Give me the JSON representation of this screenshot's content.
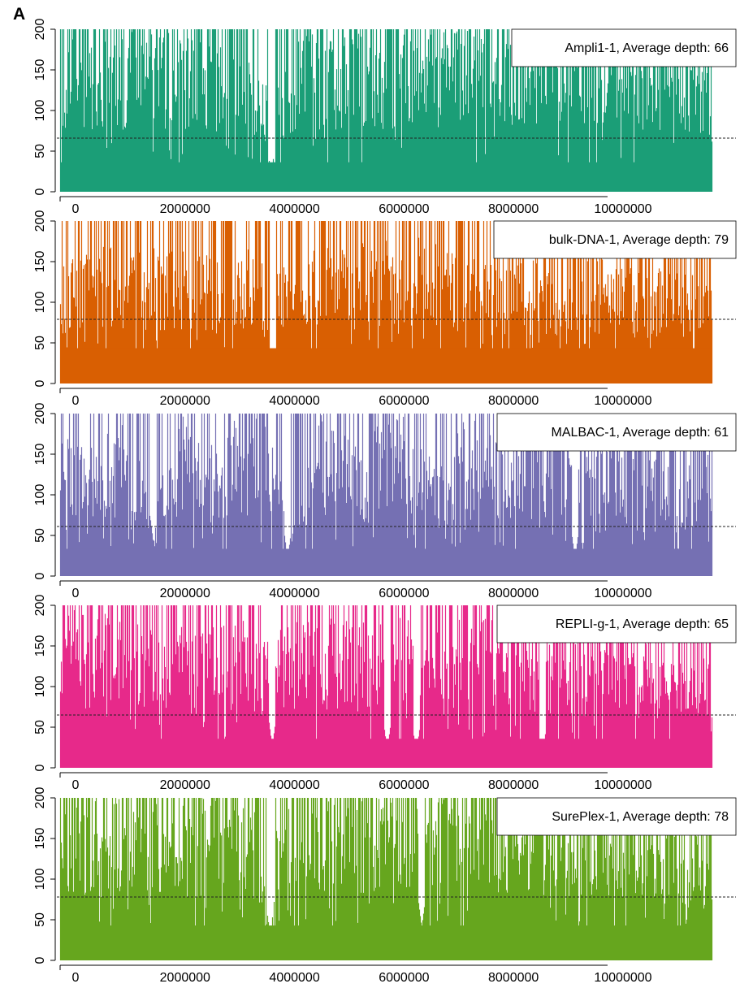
{
  "figure": {
    "panel_label": "A"
  },
  "chart_data": [
    {
      "type": "area",
      "series_name": "Ampli1-1",
      "legend": "Ampli1-1, Average depth: 66",
      "average_depth": 66,
      "color": "#1b9e77",
      "xlim": [
        0,
        11900000
      ],
      "ylim": [
        0,
        200
      ],
      "x_ticks": [
        0,
        2000000,
        4000000,
        6000000,
        8000000,
        10000000
      ],
      "y_ticks": [
        0,
        50,
        100,
        150,
        200
      ],
      "legend_position": "top-right",
      "profile": [
        [
          0,
          120
        ],
        [
          400000,
          140
        ],
        [
          800000,
          130
        ],
        [
          1500000,
          140
        ],
        [
          2500000,
          135
        ],
        [
          3300000,
          130
        ],
        [
          3750000,
          100
        ],
        [
          3820000,
          35
        ],
        [
          3900000,
          110
        ],
        [
          4500000,
          140
        ],
        [
          5500000,
          135
        ],
        [
          6500000,
          145
        ],
        [
          7500000,
          140
        ],
        [
          8500000,
          135
        ],
        [
          9500000,
          140
        ],
        [
          10500000,
          135
        ],
        [
          11500000,
          130
        ],
        [
          11900000,
          110
        ]
      ],
      "dips": [
        [
          3850000,
          20
        ]
      ]
    },
    {
      "type": "area",
      "series_name": "bulk-DNA-1",
      "legend": "bulk-DNA-1, Average depth: 79",
      "average_depth": 79,
      "color": "#d95f02",
      "xlim": [
        0,
        11900000
      ],
      "ylim": [
        0,
        200
      ],
      "x_ticks": [
        0,
        2000000,
        4000000,
        6000000,
        8000000,
        10000000
      ],
      "y_ticks": [
        0,
        50,
        100,
        150,
        200
      ],
      "legend_position": "top-right",
      "profile": [
        [
          0,
          100
        ],
        [
          500000,
          115
        ],
        [
          1500000,
          120
        ],
        [
          2500000,
          110
        ],
        [
          3500000,
          115
        ],
        [
          3780000,
          100
        ],
        [
          3850000,
          30
        ],
        [
          3950000,
          105
        ],
        [
          4500000,
          115
        ],
        [
          5500000,
          120
        ],
        [
          6500000,
          125
        ],
        [
          7500000,
          110
        ],
        [
          8500000,
          105
        ],
        [
          9500000,
          110
        ],
        [
          10500000,
          100
        ],
        [
          11500000,
          95
        ],
        [
          11900000,
          90
        ]
      ],
      "dips": [
        [
          3880000,
          15
        ]
      ]
    },
    {
      "type": "area",
      "series_name": "MALBAC-1",
      "legend": "MALBAC-1, Average depth: 61",
      "average_depth": 61,
      "color": "#7570b3",
      "xlim": [
        0,
        11900000
      ],
      "ylim": [
        0,
        200
      ],
      "x_ticks": [
        0,
        2000000,
        4000000,
        6000000,
        8000000,
        10000000
      ],
      "y_ticks": [
        0,
        50,
        100,
        150,
        200
      ],
      "legend_position": "top-right",
      "profile": [
        [
          0,
          120
        ],
        [
          600000,
          110
        ],
        [
          1200000,
          140
        ],
        [
          1700000,
          60
        ],
        [
          2300000,
          150
        ],
        [
          2900000,
          100
        ],
        [
          3300000,
          160
        ],
        [
          3800000,
          130
        ],
        [
          4200000,
          50
        ],
        [
          4700000,
          140
        ],
        [
          5500000,
          110
        ],
        [
          6100000,
          150
        ],
        [
          6800000,
          100
        ],
        [
          7500000,
          140
        ],
        [
          8300000,
          120
        ],
        [
          9000000,
          130
        ],
        [
          9800000,
          110
        ],
        [
          10600000,
          140
        ],
        [
          11300000,
          80
        ],
        [
          11800000,
          120
        ]
      ],
      "dips": [
        [
          1700000,
          40
        ],
        [
          4150000,
          20
        ],
        [
          9400000,
          20
        ]
      ]
    },
    {
      "type": "area",
      "series_name": "REPLI-g-1",
      "legend": "REPLI-g-1, Average depth: 65",
      "average_depth": 65,
      "color": "#e7298a",
      "xlim": [
        0,
        11900000
      ],
      "ylim": [
        0,
        200
      ],
      "x_ticks": [
        0,
        2000000,
        4000000,
        6000000,
        8000000,
        10000000
      ],
      "y_ticks": [
        0,
        50,
        100,
        150,
        200
      ],
      "legend_position": "top-right",
      "profile": [
        [
          0,
          140
        ],
        [
          500000,
          130
        ],
        [
          1500000,
          135
        ],
        [
          2500000,
          115
        ],
        [
          3300000,
          130
        ],
        [
          3800000,
          110
        ],
        [
          3870000,
          40
        ],
        [
          3950000,
          120
        ],
        [
          4700000,
          130
        ],
        [
          5500000,
          125
        ],
        [
          6500000,
          140
        ],
        [
          7500000,
          130
        ],
        [
          8500000,
          120
        ],
        [
          9500000,
          115
        ],
        [
          10500000,
          110
        ],
        [
          11500000,
          100
        ],
        [
          11900000,
          90
        ]
      ],
      "dips": [
        [
          3870000,
          25
        ],
        [
          5970000,
          20
        ],
        [
          6500000,
          15
        ],
        [
          8800000,
          10
        ]
      ]
    },
    {
      "type": "area",
      "series_name": "SurePlex-1",
      "legend": "SurePlex-1, Average depth: 78",
      "average_depth": 78,
      "color": "#66a61e",
      "xlim": [
        0,
        11900000
      ],
      "ylim": [
        0,
        200
      ],
      "x_ticks": [
        0,
        2000000,
        4000000,
        6000000,
        8000000,
        10000000
      ],
      "y_ticks": [
        0,
        50,
        100,
        150,
        200
      ],
      "legend_position": "top-right",
      "profile": [
        [
          0,
          150
        ],
        [
          600000,
          140
        ],
        [
          1400000,
          145
        ],
        [
          2200000,
          130
        ],
        [
          2800000,
          150
        ],
        [
          3500000,
          140
        ],
        [
          3830000,
          60
        ],
        [
          3950000,
          140
        ],
        [
          4700000,
          145
        ],
        [
          5500000,
          150
        ],
        [
          6500000,
          155
        ],
        [
          7500000,
          150
        ],
        [
          8500000,
          145
        ],
        [
          9500000,
          140
        ],
        [
          10500000,
          135
        ],
        [
          11300000,
          120
        ],
        [
          11900000,
          110
        ]
      ],
      "dips": [
        [
          3830000,
          30
        ],
        [
          6600000,
          40
        ]
      ]
    }
  ]
}
